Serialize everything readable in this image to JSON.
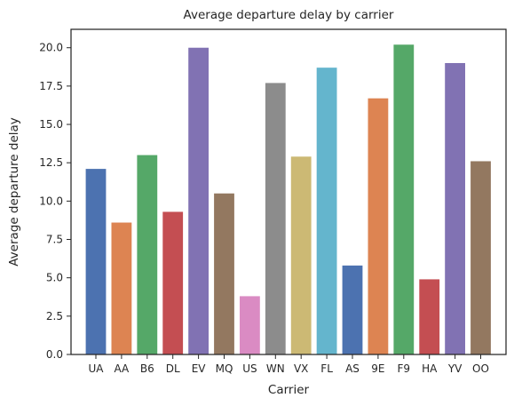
{
  "chart_data": {
    "type": "bar",
    "title": "Average departure delay by carrier",
    "xlabel": "Carrier",
    "ylabel": "Average departure delay",
    "categories": [
      "UA",
      "AA",
      "B6",
      "DL",
      "EV",
      "MQ",
      "US",
      "WN",
      "VX",
      "FL",
      "AS",
      "9E",
      "F9",
      "HA",
      "YV",
      "OO"
    ],
    "values": [
      12.1,
      8.6,
      13.0,
      9.3,
      20.0,
      10.5,
      3.8,
      17.7,
      12.9,
      18.7,
      5.8,
      16.7,
      20.2,
      4.9,
      19.0,
      12.6
    ],
    "ylim": [
      0,
      21.2
    ],
    "yticks": [
      "0.0",
      "2.5",
      "5.0",
      "7.5",
      "10.0",
      "12.5",
      "15.0",
      "17.5",
      "20.0"
    ],
    "ytick_values": [
      0,
      2.5,
      5,
      7.5,
      10,
      12.5,
      15,
      17.5,
      20
    ],
    "colors": [
      "#4c72b0",
      "#dd8452",
      "#55a868",
      "#c44e52",
      "#8172b3",
      "#937860",
      "#da8bc3",
      "#8c8c8c",
      "#ccb974",
      "#64b5cd",
      "#4c72b0",
      "#dd8452",
      "#55a868",
      "#c44e52",
      "#8172b3",
      "#937860"
    ],
    "grid": false,
    "legend": "none"
  }
}
